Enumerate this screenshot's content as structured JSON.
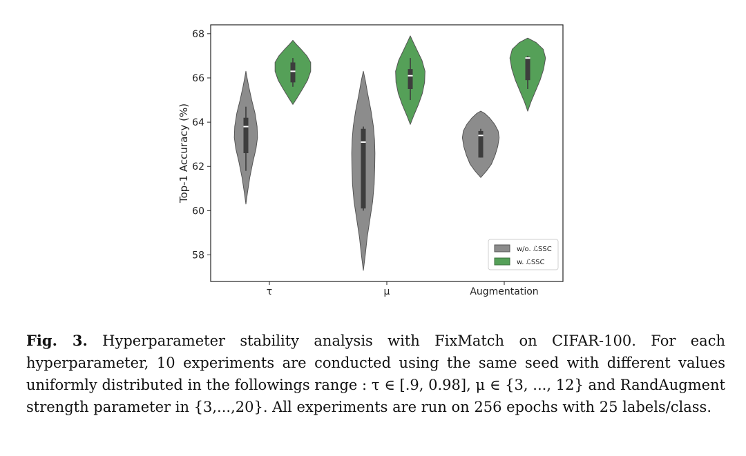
{
  "chart_data": {
    "type": "violin",
    "categories": [
      "τ",
      "μ",
      "Augmentation"
    ],
    "ylabel": "Top-1 Accuracy (%)",
    "xlabel": "",
    "ylim": [
      56.8,
      68.4
    ],
    "yticks": [
      58,
      60,
      62,
      64,
      66,
      68
    ],
    "legend_position": "lower right",
    "series": [
      {
        "name": "w/o. ℒSSC",
        "color": "#8c8c8c",
        "violins": [
          {
            "min": 60.3,
            "max": 66.3,
            "q1": 62.6,
            "median": 63.8,
            "q3": 64.2,
            "whisker_low": 61.8,
            "whisker_high": 64.7,
            "profile": [
              [
                60.3,
                0.0
              ],
              [
                60.8,
                0.08
              ],
              [
                61.5,
                0.2
              ],
              [
                62.2,
                0.36
              ],
              [
                62.8,
                0.52
              ],
              [
                63.3,
                0.6
              ],
              [
                63.8,
                0.58
              ],
              [
                64.4,
                0.47
              ],
              [
                65.0,
                0.3
              ],
              [
                65.6,
                0.15
              ],
              [
                66.0,
                0.06
              ],
              [
                66.3,
                0.0
              ]
            ]
          },
          {
            "min": 57.3,
            "max": 66.3,
            "q1": 60.1,
            "median": 63.1,
            "q3": 63.7,
            "whisker_low": 60.0,
            "whisker_high": 63.8,
            "profile": [
              [
                57.3,
                0.0
              ],
              [
                58.0,
                0.1
              ],
              [
                58.8,
                0.2
              ],
              [
                59.6,
                0.34
              ],
              [
                60.4,
                0.48
              ],
              [
                61.2,
                0.56
              ],
              [
                62.0,
                0.59
              ],
              [
                62.6,
                0.6
              ],
              [
                63.2,
                0.58
              ],
              [
                63.8,
                0.52
              ],
              [
                64.5,
                0.4
              ],
              [
                65.3,
                0.22
              ],
              [
                65.9,
                0.1
              ],
              [
                66.3,
                0.0
              ]
            ]
          },
          {
            "min": 61.5,
            "max": 64.5,
            "q1": 62.4,
            "median": 63.4,
            "q3": 63.6,
            "whisker_low": 62.4,
            "whisker_high": 63.7,
            "profile": [
              [
                61.5,
                0.0
              ],
              [
                61.8,
                0.3
              ],
              [
                62.1,
                0.55
              ],
              [
                62.5,
                0.74
              ],
              [
                62.9,
                0.88
              ],
              [
                63.3,
                0.95
              ],
              [
                63.6,
                0.9
              ],
              [
                63.9,
                0.72
              ],
              [
                64.2,
                0.45
              ],
              [
                64.4,
                0.2
              ],
              [
                64.5,
                0.0
              ]
            ]
          }
        ]
      },
      {
        "name": "w. ℒSSC",
        "color": "#55a058",
        "violins": [
          {
            "min": 64.8,
            "max": 67.7,
            "q1": 65.8,
            "median": 66.3,
            "q3": 66.7,
            "whisker_low": 65.6,
            "whisker_high": 66.9,
            "profile": [
              [
                64.8,
                0.0
              ],
              [
                65.1,
                0.22
              ],
              [
                65.5,
                0.5
              ],
              [
                65.9,
                0.76
              ],
              [
                66.3,
                0.92
              ],
              [
                66.7,
                0.92
              ],
              [
                67.0,
                0.72
              ],
              [
                67.3,
                0.42
              ],
              [
                67.5,
                0.2
              ],
              [
                67.7,
                0.0
              ]
            ]
          },
          {
            "min": 63.9,
            "max": 67.9,
            "q1": 65.5,
            "median": 66.1,
            "q3": 66.4,
            "whisker_low": 65.0,
            "whisker_high": 66.9,
            "profile": [
              [
                63.9,
                0.0
              ],
              [
                64.3,
                0.18
              ],
              [
                64.8,
                0.42
              ],
              [
                65.3,
                0.62
              ],
              [
                65.8,
                0.74
              ],
              [
                66.3,
                0.76
              ],
              [
                66.8,
                0.6
              ],
              [
                67.2,
                0.38
              ],
              [
                67.6,
                0.16
              ],
              [
                67.9,
                0.0
              ]
            ]
          },
          {
            "min": 64.5,
            "max": 67.8,
            "q1": 65.9,
            "median": 66.9,
            "q3": 66.95,
            "whisker_low": 65.5,
            "whisker_high": 67.0,
            "profile": [
              [
                64.5,
                0.0
              ],
              [
                64.9,
                0.16
              ],
              [
                65.4,
                0.4
              ],
              [
                65.9,
                0.64
              ],
              [
                66.4,
                0.82
              ],
              [
                66.9,
                0.92
              ],
              [
                67.3,
                0.8
              ],
              [
                67.6,
                0.44
              ],
              [
                67.8,
                0.0
              ]
            ]
          }
        ]
      }
    ]
  },
  "caption": {
    "label": "Fig. 3.",
    "text": " Hyperparameter stability analysis with FixMatch on CIFAR-100. For each hyperparameter, 10 experiments are conducted using the same seed with different values uniformly distributed in the followings range : τ ∈ [.9, 0.98], μ ∈ {3, ..., 12} and RandAugment strength parameter in {3,...,20}. All experiments are run on 256 epochs with 25 labels/class."
  }
}
